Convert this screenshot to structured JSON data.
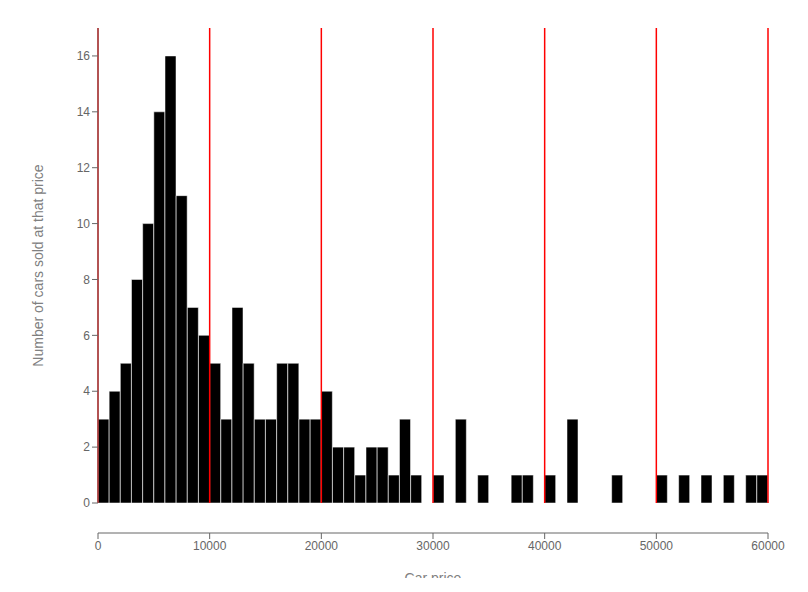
{
  "chart_data": {
    "type": "histogram",
    "xlabel": "Car price",
    "ylabel": "Number of cars sold at that price",
    "bins": [
      0,
      1000,
      2000,
      3000,
      4000,
      5000,
      6000,
      7000,
      8000,
      9000,
      10000,
      11000,
      12000,
      13000,
      14000,
      15000,
      16000,
      17000,
      18000,
      19000,
      20000,
      21000,
      22000,
      23000,
      24000,
      25000,
      26000,
      27000,
      28000,
      29000,
      30000,
      31000,
      32000,
      33000,
      34000,
      35000,
      36000,
      37000,
      38000,
      39000,
      40000,
      41000,
      42000,
      43000,
      44000,
      45000,
      46000,
      47000,
      48000,
      49000,
      50000,
      51000,
      52000,
      53000,
      54000,
      55000,
      56000,
      57000,
      58000,
      59000,
      60000
    ],
    "values": [
      3,
      4,
      5,
      8,
      10,
      14,
      16,
      11,
      7,
      6,
      5,
      3,
      7,
      5,
      3,
      3,
      5,
      5,
      3,
      3,
      4,
      2,
      2,
      1,
      2,
      2,
      1,
      3,
      1,
      0,
      1,
      0,
      3,
      0,
      1,
      0,
      0,
      1,
      1,
      0,
      1,
      0,
      3,
      0,
      0,
      0,
      1,
      0,
      0,
      0,
      1,
      0,
      1,
      0,
      1,
      0,
      1,
      0,
      1,
      1
    ],
    "xlim": [
      0,
      60000
    ],
    "ylim": [
      0,
      17
    ],
    "xticks": [
      0,
      10000,
      20000,
      30000,
      40000,
      50000,
      60000
    ],
    "yticks": [
      0,
      2,
      4,
      6,
      8,
      10,
      12,
      14,
      16
    ],
    "vlines": {
      "values": [
        0,
        10000,
        20000,
        30000,
        40000,
        50000,
        60000
      ],
      "color": "red"
    }
  }
}
